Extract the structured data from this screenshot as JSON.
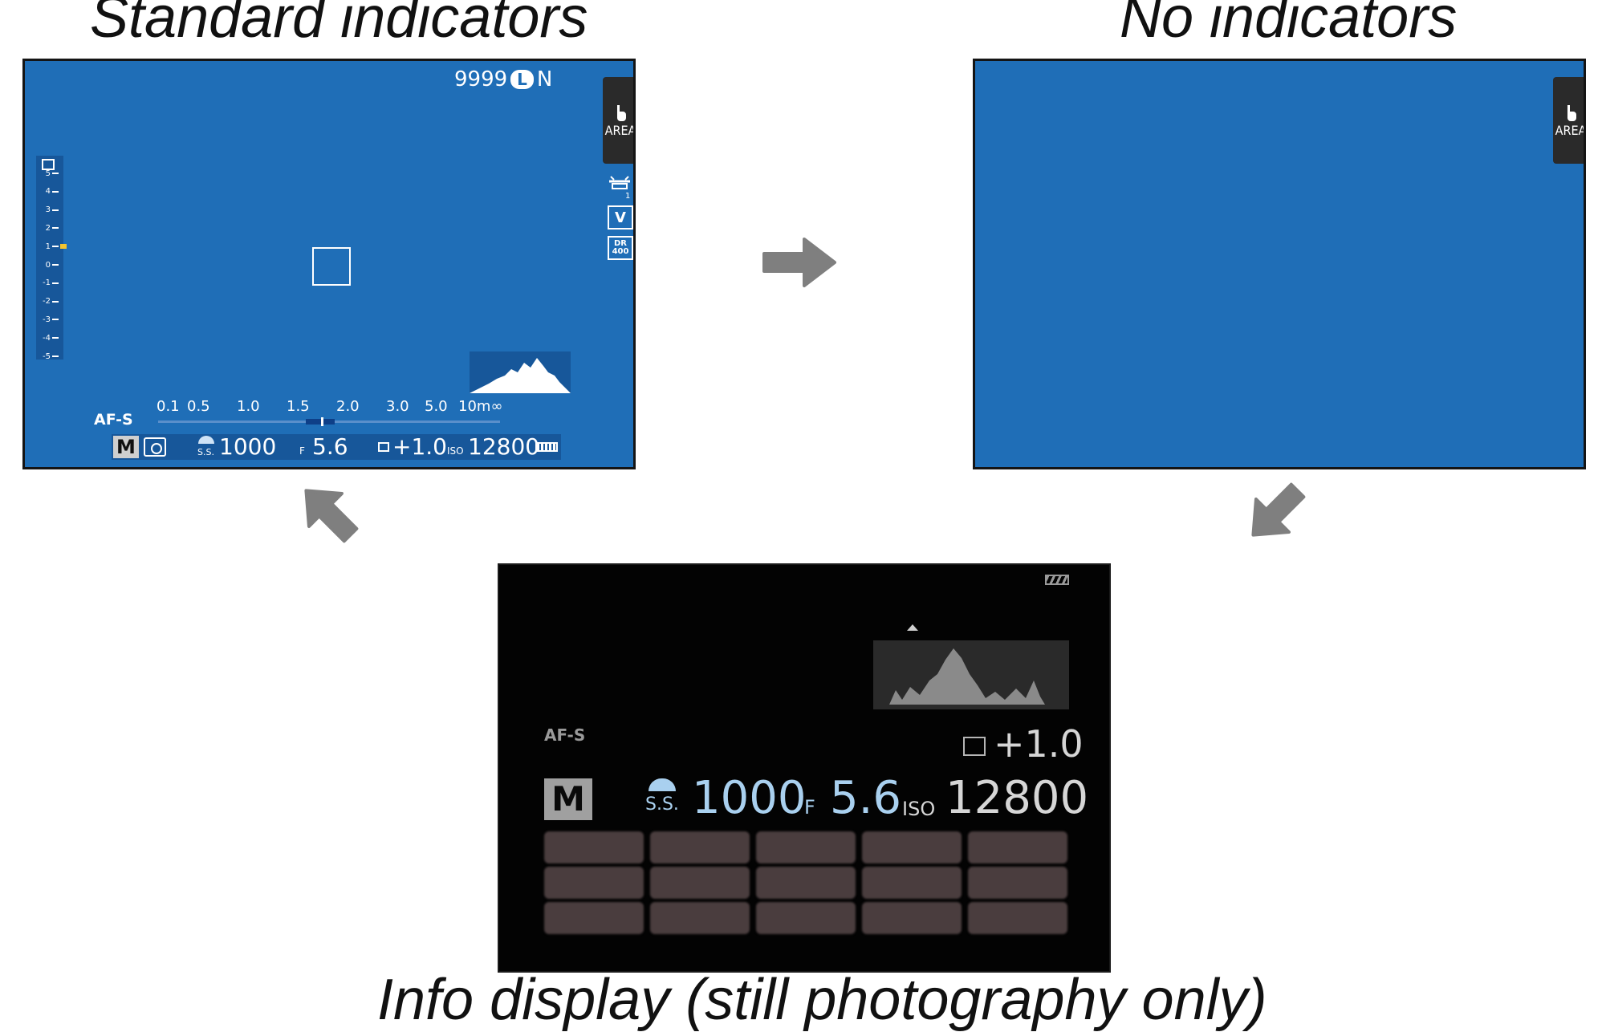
{
  "captions": {
    "standard": "Standard indicators",
    "none": "No indicators",
    "info": "Info display (still photography only)"
  },
  "standard_screen": {
    "frames_remaining": "9999",
    "image_size": "L",
    "quality": "N",
    "area_button": "AREA",
    "exposure_scale": [
      "5",
      "4",
      "3",
      "2",
      "1",
      "0",
      "-1",
      "-2",
      "-3",
      "-4",
      "-5"
    ],
    "focus_mode": "AF-S",
    "distance_ticks": [
      "0.1",
      "0.5",
      "1.0",
      "1.5",
      "2.0",
      "3.0",
      "5.0",
      "10m∞"
    ],
    "mode": "M",
    "shutter_label": "S.S.",
    "shutter_speed": "1000",
    "aperture_label": "F",
    "aperture": "5.6",
    "exposure_comp": "+1.0",
    "iso_label": "ISO",
    "iso": "12800",
    "dr_label": "400"
  },
  "none_screen": {
    "area_button": "AREA"
  },
  "info_screen": {
    "focus_mode": "AF-S",
    "exposure_comp": "+1.0",
    "mode": "M",
    "shutter_label": "S.S.",
    "shutter_speed": "1000",
    "aperture_label": "F",
    "aperture": "5.6",
    "iso_label": "ISO",
    "iso": "12800"
  },
  "colors": {
    "lcd_blue": "#1f6eb7",
    "arrow_gray": "#7f7f7f",
    "info_value_blue": "#a9d0ef"
  }
}
